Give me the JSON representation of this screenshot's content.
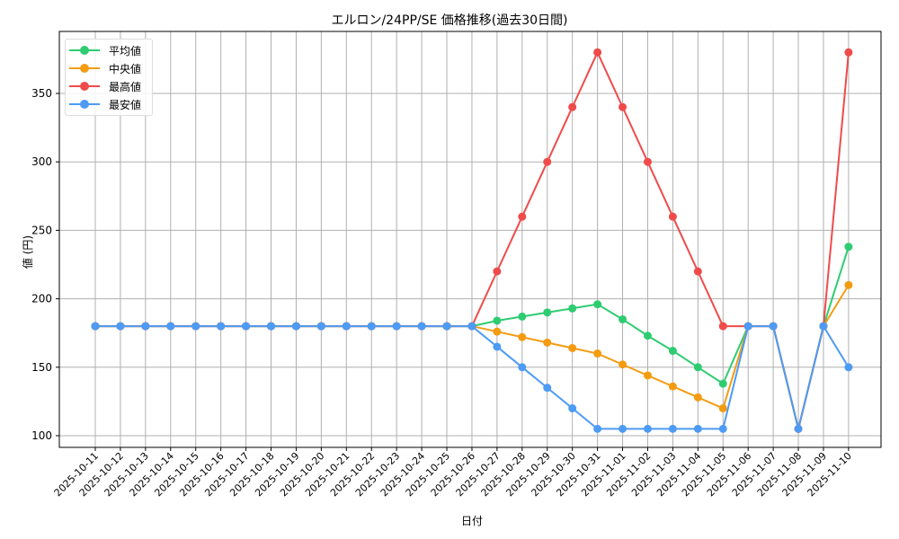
{
  "chart_data": {
    "type": "line",
    "title": "エルロン/24PP/SE 価格推移(過去30日間)",
    "xlabel": "日付",
    "ylabel": "値 (円)",
    "ylim": [
      90,
      392
    ],
    "yticks": [
      100,
      150,
      200,
      250,
      300,
      350
    ],
    "grid": true,
    "legend_position": "upper left",
    "categories": [
      "2025-10-11",
      "2025-10-12",
      "2025-10-13",
      "2025-10-14",
      "2025-10-15",
      "2025-10-16",
      "2025-10-17",
      "2025-10-18",
      "2025-10-19",
      "2025-10-20",
      "2025-10-21",
      "2025-10-22",
      "2025-10-23",
      "2025-10-24",
      "2025-10-25",
      "2025-10-26",
      "2025-10-27",
      "2025-10-28",
      "2025-10-29",
      "2025-10-30",
      "2025-10-31",
      "2025-11-01",
      "2025-11-02",
      "2025-11-03",
      "2025-11-04",
      "2025-11-05",
      "2025-11-06",
      "2025-11-07",
      "2025-11-08",
      "2025-11-09",
      "2025-11-10"
    ],
    "series": [
      {
        "name": "平均値",
        "color": "#2ecc71",
        "values": [
          180,
          180,
          180,
          180,
          180,
          180,
          180,
          180,
          180,
          180,
          180,
          180,
          180,
          180,
          180,
          180,
          184,
          187,
          190,
          193,
          196,
          185,
          173,
          162,
          150,
          138,
          180,
          180,
          105,
          180,
          238
        ]
      },
      {
        "name": "中央値",
        "color": "#f39c12",
        "values": [
          180,
          180,
          180,
          180,
          180,
          180,
          180,
          180,
          180,
          180,
          180,
          180,
          180,
          180,
          180,
          180,
          176,
          172,
          168,
          164,
          160,
          152,
          144,
          136,
          128,
          120,
          180,
          180,
          105,
          180,
          210
        ]
      },
      {
        "name": "最高値",
        "color": "#ef4b4b",
        "values": [
          180,
          180,
          180,
          180,
          180,
          180,
          180,
          180,
          180,
          180,
          180,
          180,
          180,
          180,
          180,
          180,
          220,
          260,
          300,
          340,
          380,
          340,
          300,
          260,
          220,
          180,
          180,
          180,
          105,
          180,
          380
        ]
      },
      {
        "name": "最安値",
        "color": "#4d9bf5",
        "values": [
          180,
          180,
          180,
          180,
          180,
          180,
          180,
          180,
          180,
          180,
          180,
          180,
          180,
          180,
          180,
          180,
          165,
          150,
          135,
          120,
          105,
          105,
          105,
          105,
          105,
          105,
          180,
          180,
          105,
          180,
          150
        ]
      }
    ]
  }
}
